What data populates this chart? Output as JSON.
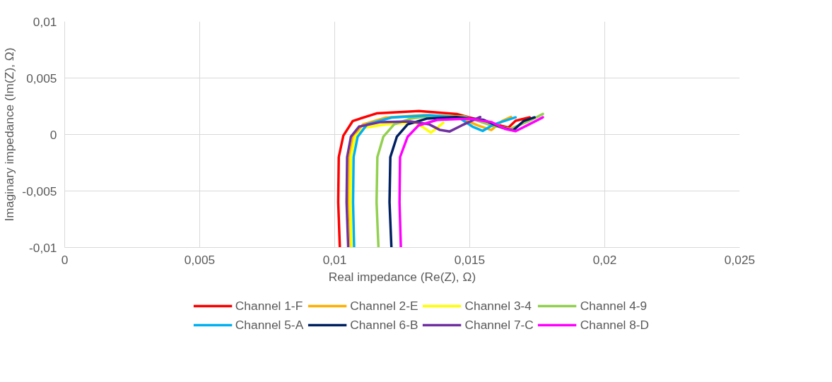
{
  "chart_data": {
    "type": "line",
    "xlabel": "Real impedance (Re(Z), Ω)",
    "ylabel": "Imaginary impedance (Im(Z), Ω)",
    "xlim": [
      0,
      0.025
    ],
    "ylim": [
      -0.01,
      0.01
    ],
    "xticks": [
      {
        "value": 0,
        "label": "0"
      },
      {
        "value": 0.005,
        "label": "0,005"
      },
      {
        "value": 0.01,
        "label": "0,01"
      },
      {
        "value": 0.015,
        "label": "0,015"
      },
      {
        "value": 0.02,
        "label": "0,02"
      },
      {
        "value": 0.025,
        "label": "0,025"
      }
    ],
    "yticks": [
      {
        "value": -0.01,
        "label": "-0,01"
      },
      {
        "value": -0.005,
        "label": "-0,005"
      },
      {
        "value": 0,
        "label": "0"
      },
      {
        "value": 0.005,
        "label": "0,005"
      },
      {
        "value": 0.01,
        "label": "0,01"
      }
    ],
    "grid": true,
    "legend": "bottom",
    "marker": "none",
    "line_style": "solid",
    "series": [
      {
        "name": "Channel 1-F",
        "color": "#ff0000",
        "x": [
          0.01019,
          0.01013,
          0.01015,
          0.01032,
          0.01067,
          0.01155,
          0.01312,
          0.01452,
          0.01591,
          0.01644,
          0.0167,
          0.01722
        ],
        "values": [
          -0.01,
          -0.006,
          -0.002,
          -0.0001,
          0.0012,
          0.00187,
          0.00208,
          0.00181,
          0.00092,
          0.00062,
          0.00122,
          0.00152
        ]
      },
      {
        "name": "Channel 2-E",
        "color": "#ffb000",
        "x": [
          0.0106,
          0.01053,
          0.01055,
          0.0107,
          0.01105,
          0.0119,
          0.0133,
          0.0145,
          0.0153,
          0.0158,
          0.0162,
          0.01653
        ],
        "values": [
          -0.01,
          -0.006,
          -0.002,
          -0.0001,
          0.0009,
          0.0015,
          0.00172,
          0.0016,
          0.0008,
          0.0004,
          0.0012,
          0.00156
        ]
      },
      {
        "name": "Channel 3-4",
        "color": "#ffff00",
        "x": [
          0.01062,
          0.01058,
          0.0106,
          0.01075,
          0.0111,
          0.0119,
          0.013,
          0.0133,
          0.01356,
          0.0138,
          0.01402
        ],
        "values": [
          -0.01,
          -0.006,
          -0.002,
          -0.0002,
          0.0006,
          0.0009,
          0.00105,
          0.0006,
          0.00016,
          0.0006,
          0.00104
        ]
      },
      {
        "name": "Channel 4-9",
        "color": "#92d050",
        "x": [
          0.01162,
          0.01155,
          0.01158,
          0.0118,
          0.0122,
          0.0128,
          0.0136,
          0.0148,
          0.0158,
          0.0165,
          0.0172,
          0.01771
        ],
        "values": [
          -0.01,
          -0.006,
          -0.002,
          -0.0002,
          0.0009,
          0.0014,
          0.00165,
          0.0016,
          0.0008,
          0.0005,
          0.0012,
          0.00182
        ]
      },
      {
        "name": "Channel 5-A",
        "color": "#00b0f0",
        "x": [
          0.01072,
          0.01068,
          0.0107,
          0.01085,
          0.0112,
          0.0121,
          0.0135,
          0.0146,
          0.0151,
          0.01548,
          0.0159,
          0.0167
        ],
        "values": [
          -0.01,
          -0.006,
          -0.002,
          -0.0002,
          0.0009,
          0.0015,
          0.0017,
          0.0015,
          0.0007,
          0.00032,
          0.0009,
          0.00152
        ]
      },
      {
        "name": "Channel 6-B",
        "color": "#002060",
        "x": [
          0.0121,
          0.01203,
          0.01206,
          0.0123,
          0.0127,
          0.0134,
          0.0145,
          0.0155,
          0.0162,
          0.01661,
          0.017,
          0.0174
        ],
        "values": [
          -0.01,
          -0.006,
          -0.002,
          -0.0002,
          0.0009,
          0.0014,
          0.00155,
          0.0013,
          0.0006,
          0.00037,
          0.0012,
          0.00152
        ]
      },
      {
        "name": "Channel 7-C",
        "color": "#7030a0",
        "x": [
          0.0105,
          0.01044,
          0.01046,
          0.0106,
          0.0109,
          0.0117,
          0.0128,
          0.0135,
          0.0139,
          0.01426,
          0.0147,
          0.01539
        ],
        "values": [
          -0.01,
          -0.006,
          -0.002,
          -0.0002,
          0.0007,
          0.0011,
          0.00115,
          0.0009,
          0.0004,
          0.00027,
          0.0008,
          0.00155
        ]
      },
      {
        "name": "Channel 8-D",
        "color": "#ff00ff",
        "x": [
          0.01245,
          0.0124,
          0.01242,
          0.0127,
          0.0131,
          0.0138,
          0.015,
          0.0158,
          0.0163,
          0.0167,
          0.0172,
          0.01771
        ],
        "values": [
          -0.01,
          -0.006,
          -0.002,
          -0.0002,
          0.0008,
          0.0013,
          0.0014,
          0.0011,
          0.0005,
          0.0003,
          0.0009,
          0.00152
        ]
      }
    ]
  }
}
